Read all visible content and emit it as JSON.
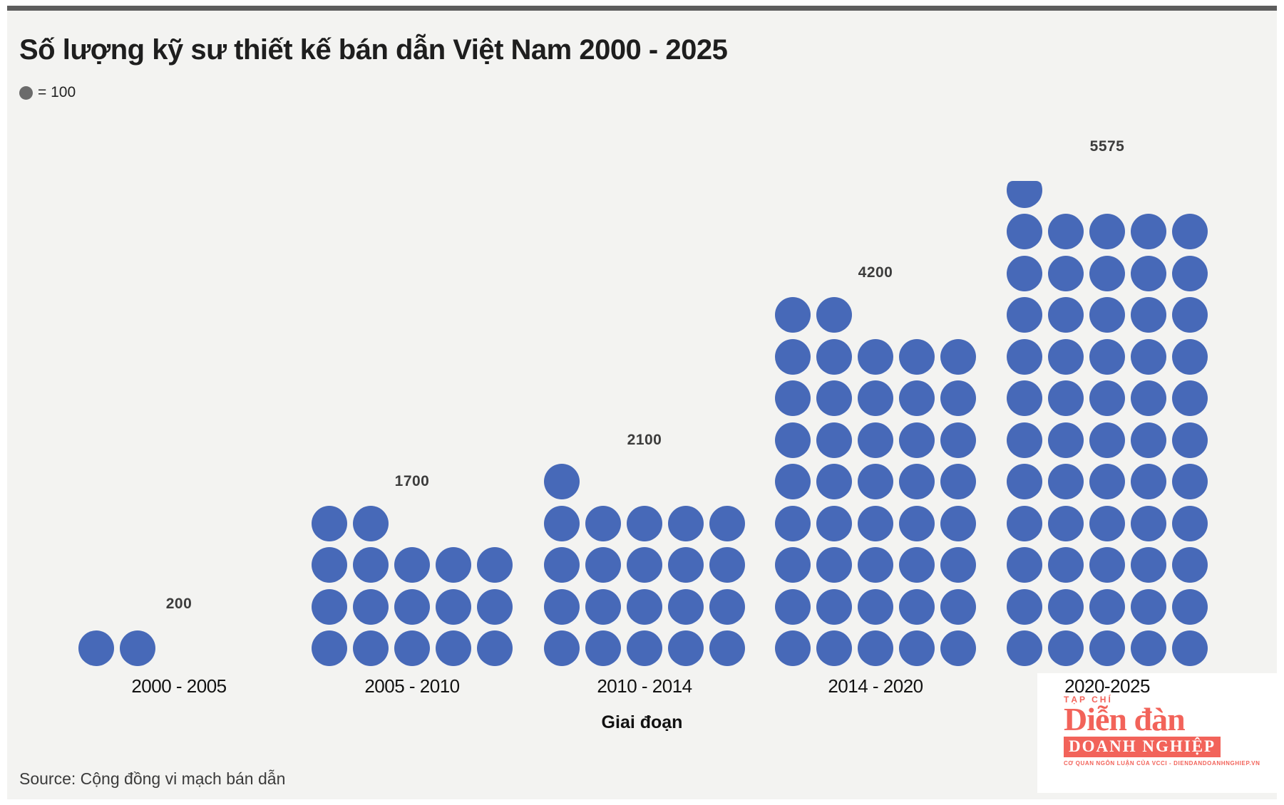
{
  "header": {
    "title": "Số lượng kỹ sư thiết kế bán dẫn Việt Nam 2000 - 2025",
    "legend_label": "= 100"
  },
  "chart_data": {
    "type": "pictogram",
    "unit_per_symbol": 100,
    "symbol": "circle",
    "columns_per_group": 5,
    "categories": [
      "2000 - 2005",
      "2005 - 2010",
      "2010 - 2014",
      "2014 - 2020",
      "2020-2025"
    ],
    "values": [
      200,
      1700,
      2100,
      4200,
      5575
    ],
    "value_labels": [
      "200",
      "1700",
      "2100",
      "4200",
      "5575"
    ],
    "title": "Số lượng kỹ sư thiết kế bán dẫn Việt Nam 2000 - 2025",
    "xlabel": "Giai đoạn",
    "legend": "= 100",
    "legend_position": "top-left",
    "grid": false,
    "dot_color": "#4769B8",
    "legend_dot_color": "#6B6B6B"
  },
  "axis": {
    "xlabel": "Giai đoạn"
  },
  "footer": {
    "source": "Source: Cộng đồng vi mạch bán dẫn"
  },
  "logo": {
    "tagline_top": "TẠP CHÍ",
    "name": "Diễn đàn",
    "bar_text": "DOANH NGHIỆP",
    "tagline_bottom": "CƠ QUAN NGÔN LUẬN CỦA VCCI - DIENDANDOANHNGHIEP.VN",
    "color": "#F2635A"
  },
  "colors": {
    "card_background": "#F3F3F1",
    "top_bar": "#5D5D5D",
    "title_text": "#1E1E1E",
    "value_label_text": "#3C3C3C",
    "dot_blue": "#4769B8"
  }
}
